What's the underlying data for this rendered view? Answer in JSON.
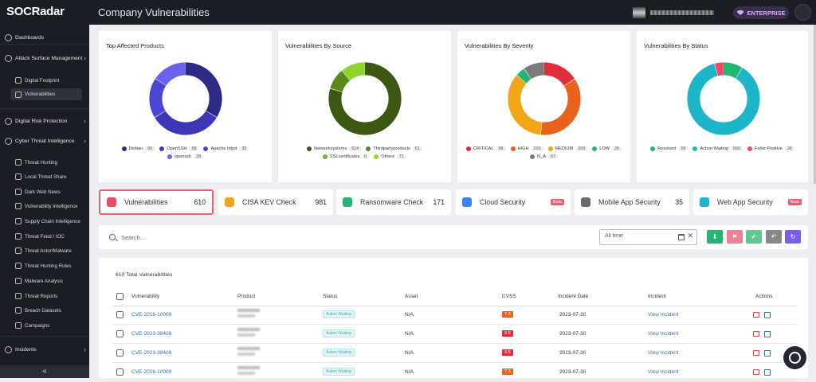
{
  "app": {
    "logo": "SOCRadar",
    "page_title": "Company Vulnerabilities",
    "badge": "ENTERPRISE"
  },
  "sidebar": {
    "items": [
      {
        "label": "Dashboards"
      },
      {
        "label": "Attack Surface Management"
      },
      {
        "label": "Digital Footprint"
      },
      {
        "label": "Vulnerabilities"
      },
      {
        "label": "Digital Risk Protection"
      },
      {
        "label": "Cyber Threat Intelligence"
      },
      {
        "label": "Threat Hunting"
      },
      {
        "label": "Local Threat Share"
      },
      {
        "label": "Dark Web News"
      },
      {
        "label": "Vulnerability Intelligence"
      },
      {
        "label": "Supply Chain Intelligence"
      },
      {
        "label": "Threat Feed / IOC"
      },
      {
        "label": "Threat Actor/Malware"
      },
      {
        "label": "Threat Hunting Rules"
      },
      {
        "label": "Malware Analysis"
      },
      {
        "label": "Threat Reports"
      },
      {
        "label": "Breach Datasets"
      },
      {
        "label": "Campaigns"
      },
      {
        "label": "Incidents"
      }
    ],
    "collapse": "«"
  },
  "charts": [
    {
      "title": "Top Affected Products",
      "segments": [
        {
          "name": "Debian",
          "count": "60",
          "color": "#2d2a86"
        },
        {
          "name": "OpenSSH",
          "count": "58",
          "color": "#3d37b8"
        },
        {
          "name": "Apache httpd",
          "count": "32",
          "color": "#4b45d6"
        },
        {
          "name": "openssh",
          "count": "28",
          "color": "#6a62ea"
        }
      ]
    },
    {
      "title": "Vulnerabilities By Source",
      "segments": [
        {
          "name": "Networksystems",
          "count": "514",
          "color": "#3d5714"
        },
        {
          "name": "Thirdpartyproducts",
          "count": "61",
          "color": "#5a8a1a"
        },
        {
          "name": "SSLcertificates",
          "count": "0",
          "color": "#6fb025"
        },
        {
          "name": "Others",
          "count": "71",
          "color": "#8fd42e"
        }
      ]
    },
    {
      "title": "Vulnerabilities By Severity",
      "segments": [
        {
          "name": "CRITICAL",
          "count": "96",
          "color": "#e02d3c"
        },
        {
          "name": "HIGH",
          "count": "216",
          "color": "#e8621a"
        },
        {
          "name": "MEDIUM",
          "count": "209",
          "color": "#f2a516"
        },
        {
          "name": "LOW",
          "count": "26",
          "color": "#22b573"
        },
        {
          "name": "N_A",
          "count": "57",
          "color": "#7b7b7b"
        }
      ]
    },
    {
      "title": "Vulnerabilities By Status",
      "segments": [
        {
          "name": "Resolved",
          "count": "56",
          "color": "#22b573"
        },
        {
          "name": "Action Waiting",
          "count": "560",
          "color": "#1cb5c9"
        },
        {
          "name": "False Positive",
          "count": "26",
          "color": "#ef4a64"
        }
      ]
    }
  ],
  "chart_data": [
    {
      "type": "pie",
      "title": "Top Affected Products",
      "categories": [
        "Debian",
        "OpenSSH",
        "Apache httpd",
        "openssh"
      ],
      "values": [
        60,
        58,
        32,
        28
      ]
    },
    {
      "type": "pie",
      "title": "Vulnerabilities By Source",
      "categories": [
        "Networksystems",
        "Thirdpartyproducts",
        "SSLcertificates",
        "Others"
      ],
      "values": [
        514,
        61,
        0,
        71
      ]
    },
    {
      "type": "pie",
      "title": "Vulnerabilities By Severity",
      "categories": [
        "CRITICAL",
        "HIGH",
        "MEDIUM",
        "LOW",
        "N_A"
      ],
      "values": [
        96,
        216,
        209,
        26,
        57
      ]
    },
    {
      "type": "pie",
      "title": "Vulnerabilities By Status",
      "categories": [
        "Resolved",
        "Action Waiting",
        "False Positive"
      ],
      "values": [
        56,
        560,
        26
      ]
    }
  ],
  "categories": [
    {
      "label": "Vulnerabilities",
      "value": "610",
      "color": "#ef4a64"
    },
    {
      "label": "CISA KEV Check",
      "value": "981",
      "color": "#f2a516"
    },
    {
      "label": "Ransomware Check",
      "value": "171",
      "color": "#22b573"
    },
    {
      "label": "Cloud Security",
      "value": "",
      "badge": "Beta",
      "color": "#3b82f6"
    },
    {
      "label": "Mobile App Security",
      "value": "35",
      "color": "#6b6b6b"
    },
    {
      "label": "Web App Security",
      "value": "",
      "badge": "Beta",
      "color": "#1cb5c9"
    }
  ],
  "search": {
    "placeholder": "Search...",
    "date_placeholder": "All time",
    "clear": "✕"
  },
  "actions": [
    {
      "icon": "download-icon",
      "glyph": "⬇",
      "color": "#22b573"
    },
    {
      "icon": "flag-icon",
      "glyph": "⚑",
      "color": "#ef7f95"
    },
    {
      "icon": "check-icon",
      "glyph": "✔",
      "color": "#5fc88f"
    },
    {
      "icon": "undo-icon",
      "glyph": "↶",
      "color": "#888888"
    },
    {
      "icon": "refresh-icon",
      "glyph": "↻",
      "color": "#7b5cf0"
    }
  ],
  "table": {
    "total": "610 Total Vulnerabilities",
    "headers": {
      "vulnerability": "Vulnerability",
      "product": "Product",
      "status": "Status",
      "asset": "Asset",
      "cvss": "CVSS",
      "incident_date": "Incident Date",
      "incident": "Incident",
      "actions": "Actions"
    },
    "rows": [
      {
        "cve": "CVE-2016-10009",
        "status": "Action Waiting",
        "asset": "N/A",
        "cvss": "7.3",
        "cvss_color": "#e8621a",
        "date": "2023-07-30",
        "incident": "View Incident"
      },
      {
        "cve": "CVE-2023-38408",
        "status": "Action Waiting",
        "asset": "N/A",
        "cvss": "9.8",
        "cvss_color": "#e02d3c",
        "date": "2023-07-30",
        "incident": "View Incident"
      },
      {
        "cve": "CVE-2023-38408",
        "status": "Action Waiting",
        "asset": "N/A",
        "cvss": "9.8",
        "cvss_color": "#e02d3c",
        "date": "2023-07-30",
        "incident": "View Incident"
      },
      {
        "cve": "CVE-2016-10009",
        "status": "Action Waiting",
        "asset": "N/A",
        "cvss": "7.3",
        "cvss_color": "#e8621a",
        "date": "2023-07-30",
        "incident": "View Incident"
      }
    ]
  }
}
